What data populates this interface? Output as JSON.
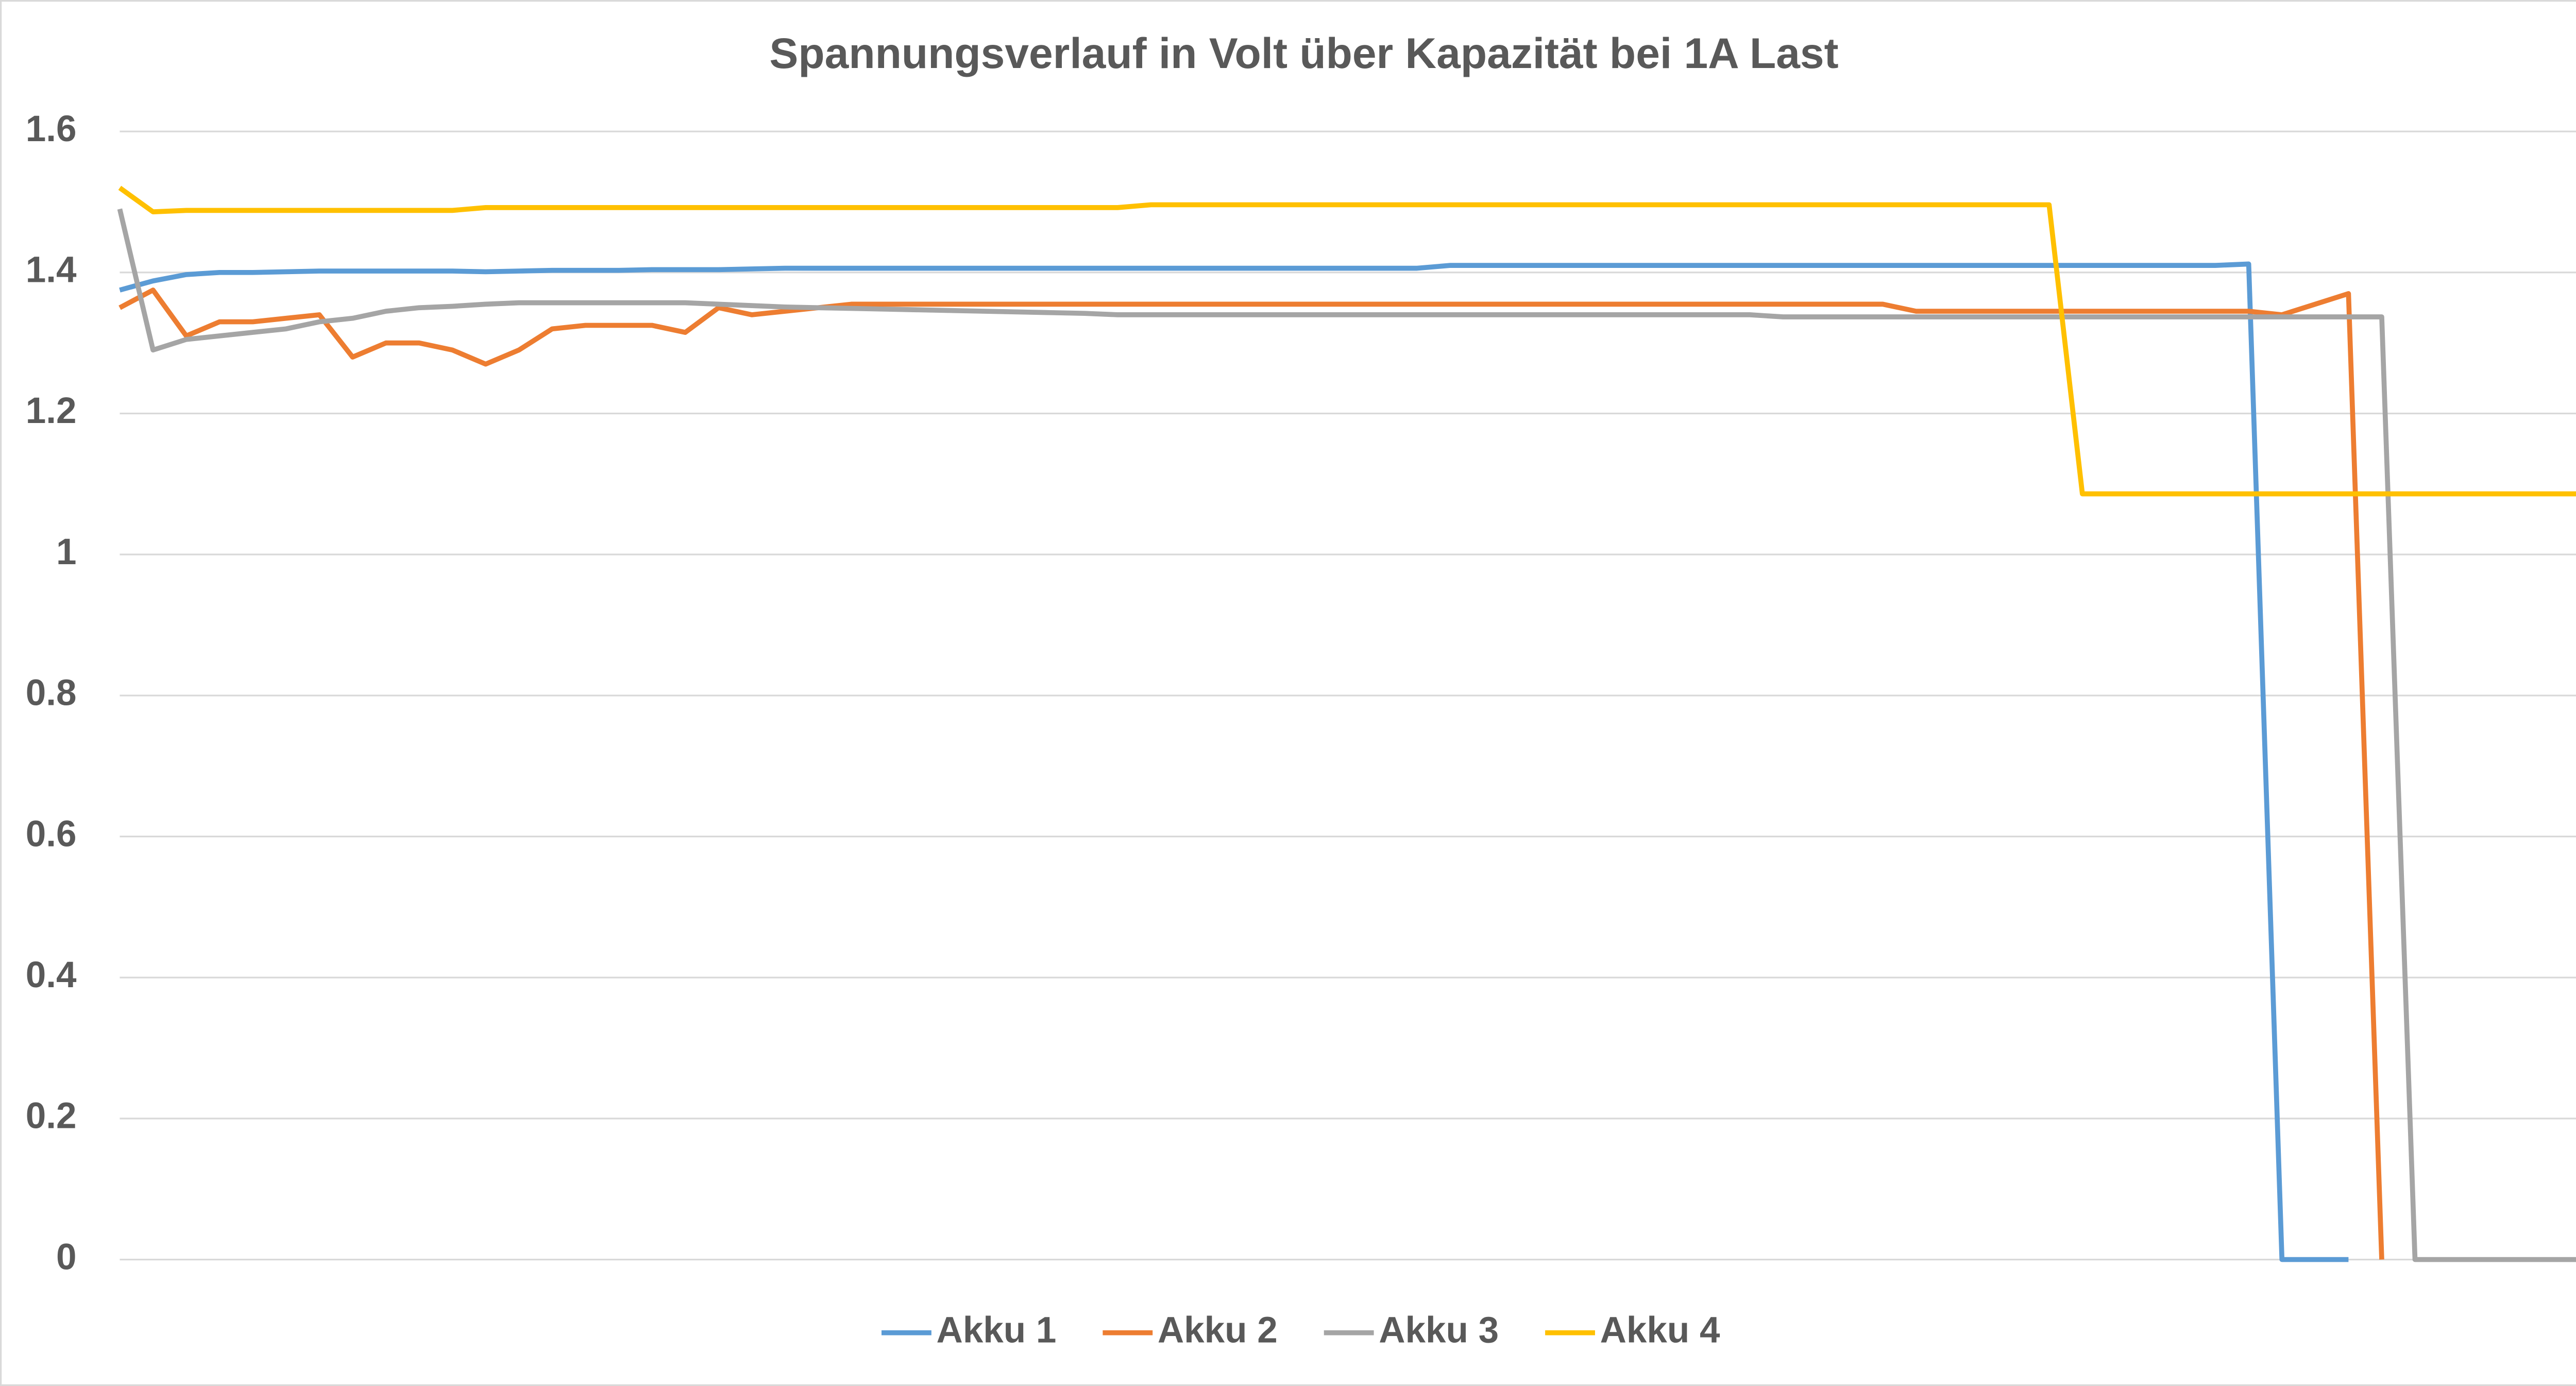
{
  "chart_data": {
    "type": "line",
    "title": "Spannungsverlauf in Volt über Kapazität bei 1A Last",
    "categories": [
      null,
      null,
      null,
      null,
      null,
      null,
      null,
      null,
      null,
      null,
      null,
      null,
      null,
      null,
      null,
      null,
      null,
      null,
      null,
      null,
      null,
      null,
      null,
      null,
      null,
      null,
      null,
      null,
      null,
      null,
      null,
      null,
      null,
      null,
      null,
      null,
      null,
      null,
      null,
      null,
      null,
      null,
      null,
      null,
      null,
      null,
      null,
      null,
      null,
      null,
      null,
      null,
      null,
      null,
      null,
      null,
      null,
      null,
      null,
      null,
      null,
      null,
      null,
      null,
      null,
      null,
      null,
      null,
      null,
      null,
      null,
      null,
      null,
      null,
      null
    ],
    "series": [
      {
        "name": "Akku 1",
        "color": "#5b9bd5",
        "values": [
          1.375,
          1.388,
          1.397,
          1.4,
          1.4,
          1.401,
          1.402,
          1.402,
          1.402,
          1.402,
          1.402,
          1.401,
          1.402,
          1.403,
          1.403,
          1.403,
          1.404,
          1.404,
          1.404,
          1.405,
          1.406,
          1.406,
          1.406,
          1.406,
          1.406,
          1.406,
          1.406,
          1.406,
          1.406,
          1.406,
          1.406,
          1.406,
          1.406,
          1.406,
          1.406,
          1.406,
          1.406,
          1.406,
          1.406,
          1.406,
          1.41,
          1.41,
          1.41,
          1.41,
          1.41,
          1.41,
          1.41,
          1.41,
          1.41,
          1.41,
          1.41,
          1.41,
          1.41,
          1.41,
          1.41,
          1.41,
          1.41,
          1.41,
          1.41,
          1.41,
          1.41,
          1.41,
          1.41,
          1.41,
          1.412,
          0,
          0,
          0,
          null,
          null,
          null,
          null,
          null,
          null,
          null
        ]
      },
      {
        "name": "Akku 2",
        "color": "#ed7d31",
        "values": [
          1.35,
          1.375,
          1.31,
          1.33,
          1.33,
          1.335,
          1.34,
          1.28,
          1.3,
          1.3,
          1.29,
          1.27,
          1.29,
          1.32,
          1.325,
          1.325,
          1.325,
          1.315,
          1.35,
          1.34,
          1.345,
          1.35,
          1.355,
          1.355,
          1.355,
          1.355,
          1.355,
          1.355,
          1.355,
          1.355,
          1.355,
          1.355,
          1.355,
          1.355,
          1.355,
          1.355,
          1.355,
          1.355,
          1.355,
          1.355,
          1.355,
          1.355,
          1.355,
          1.355,
          1.355,
          1.355,
          1.355,
          1.355,
          1.355,
          1.355,
          1.355,
          1.355,
          1.355,
          1.355,
          1.345,
          1.345,
          1.345,
          1.345,
          1.345,
          1.345,
          1.345,
          1.345,
          1.345,
          1.345,
          1.345,
          1.34,
          1.355,
          1.37,
          0,
          null,
          null,
          null,
          null,
          null,
          null
        ]
      },
      {
        "name": "Akku 3",
        "color": "#a5a5a5",
        "values": [
          1.49,
          1.29,
          1.305,
          1.31,
          1.315,
          1.32,
          1.33,
          1.335,
          1.345,
          1.35,
          1.352,
          1.355,
          1.357,
          1.357,
          1.357,
          1.357,
          1.357,
          1.357,
          1.355,
          1.353,
          1.351,
          1.35,
          1.349,
          1.348,
          1.347,
          1.346,
          1.345,
          1.344,
          1.343,
          1.342,
          1.34,
          1.34,
          1.34,
          1.34,
          1.34,
          1.34,
          1.34,
          1.34,
          1.34,
          1.34,
          1.34,
          1.34,
          1.34,
          1.34,
          1.34,
          1.34,
          1.34,
          1.34,
          1.34,
          1.34,
          1.337,
          1.337,
          1.337,
          1.337,
          1.337,
          1.337,
          1.337,
          1.337,
          1.337,
          1.337,
          1.337,
          1.337,
          1.337,
          1.337,
          1.337,
          1.337,
          1.337,
          1.337,
          1.337,
          0,
          0,
          0,
          0,
          0,
          0
        ]
      },
      {
        "name": "Akku 4",
        "color": "#ffc000",
        "values": [
          1.52,
          1.486,
          1.488,
          1.488,
          1.488,
          1.488,
          1.488,
          1.488,
          1.488,
          1.488,
          1.488,
          1.492,
          1.492,
          1.492,
          1.492,
          1.492,
          1.492,
          1.492,
          1.492,
          1.492,
          1.492,
          1.492,
          1.492,
          1.492,
          1.492,
          1.492,
          1.492,
          1.492,
          1.492,
          1.492,
          1.492,
          1.496,
          1.496,
          1.496,
          1.496,
          1.496,
          1.496,
          1.496,
          1.496,
          1.496,
          1.496,
          1.496,
          1.496,
          1.496,
          1.496,
          1.496,
          1.496,
          1.496,
          1.496,
          1.496,
          1.496,
          1.496,
          1.496,
          1.496,
          1.496,
          1.496,
          1.496,
          1.496,
          1.496,
          1.086,
          1.086,
          1.086,
          1.086,
          1.086,
          1.086,
          1.086,
          1.086,
          1.086,
          1.086,
          1.086,
          1.086,
          1.086,
          1.086,
          1.086,
          1.086
        ]
      }
    ],
    "ylim": [
      0,
      1.6
    ],
    "yticks": [
      0,
      0.2,
      0.4,
      0.6,
      0.8,
      1,
      1.2,
      1.4,
      1.6
    ],
    "grid": true,
    "legend": "bottom"
  }
}
